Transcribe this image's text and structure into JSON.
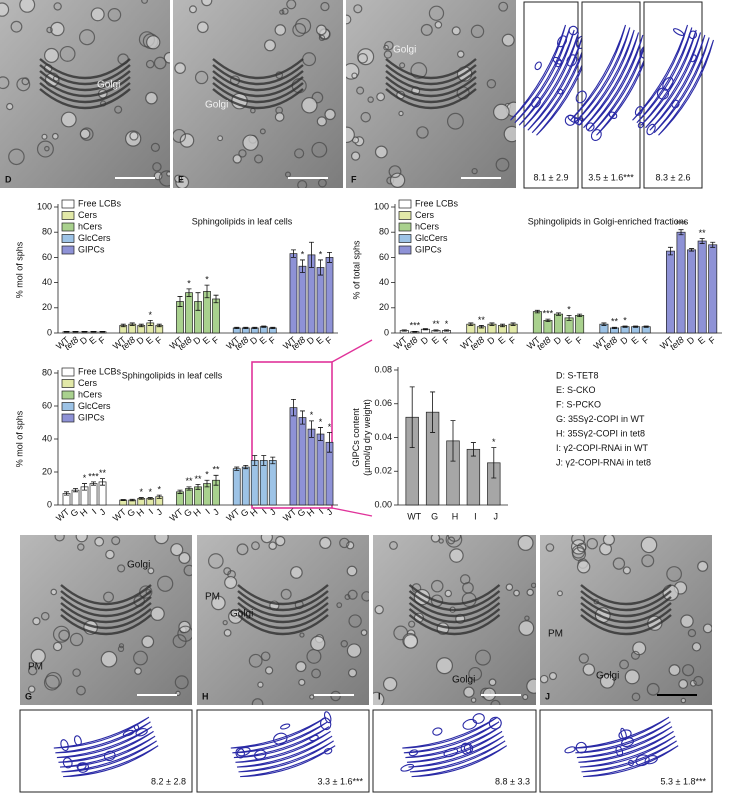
{
  "chart_data": [
    {
      "type": "bar",
      "title": "Sphingolipids in leaf cells",
      "y_label": "% mol of sphs",
      "ylim": [
        0,
        100
      ],
      "yticks": [
        0,
        20,
        40,
        60,
        80,
        100
      ],
      "series": [
        {
          "name": "Free LCBs",
          "color": "#ffffff",
          "categories": [
            "WT",
            "tet8",
            "D",
            "E",
            "F"
          ],
          "values": [
            1,
            1,
            1,
            1,
            1
          ],
          "errors": [
            0.3,
            0.3,
            0.3,
            0.3,
            0.3
          ],
          "significance": [
            null,
            null,
            null,
            null,
            null
          ]
        },
        {
          "name": "Cers",
          "color": "#e2e9a8",
          "categories": [
            "WT",
            "tet8",
            "D",
            "E",
            "F"
          ],
          "values": [
            6,
            7,
            6,
            8,
            6
          ],
          "errors": [
            1,
            1,
            1,
            2,
            1
          ],
          "significance": [
            null,
            null,
            null,
            "*",
            null
          ]
        },
        {
          "name": "hCers",
          "color": "#a9d18e",
          "categories": [
            "WT",
            "tet8",
            "D",
            "E",
            "F"
          ],
          "values": [
            25,
            32,
            25,
            33,
            27
          ],
          "errors": [
            4,
            3,
            7,
            5,
            3
          ],
          "significance": [
            null,
            "*",
            null,
            "*",
            null
          ]
        },
        {
          "name": "GlcCers",
          "color": "#9dc3e6",
          "categories": [
            "WT",
            "tet8",
            "D",
            "E",
            "F"
          ],
          "values": [
            4,
            4,
            4,
            5,
            4
          ],
          "errors": [
            0.5,
            0.5,
            0.5,
            0.5,
            0.5
          ],
          "significance": [
            null,
            null,
            null,
            null,
            null
          ]
        },
        {
          "name": "GIPCs",
          "color": "#8e92d6",
          "categories": [
            "WT",
            "tet8",
            "D",
            "E",
            "F"
          ],
          "values": [
            63,
            53,
            62,
            52,
            60
          ],
          "errors": [
            3,
            5,
            10,
            6,
            4
          ],
          "significance": [
            null,
            "*",
            null,
            "*",
            null
          ]
        }
      ]
    },
    {
      "type": "bar",
      "title": "Sphingolipids in Golgi-enriched fractions",
      "y_label": "% of total sphs",
      "ylim": [
        0,
        100
      ],
      "yticks": [
        0,
        20,
        40,
        60,
        80,
        100
      ],
      "series": [
        {
          "name": "Free LCBs",
          "color": "#ffffff",
          "categories": [
            "WT",
            "tet8",
            "D",
            "E",
            "F"
          ],
          "values": [
            2,
            1,
            3,
            2,
            2
          ],
          "errors": [
            0.5,
            0.3,
            0.5,
            0.5,
            0.5
          ],
          "significance": [
            null,
            "***",
            null,
            "**",
            "*"
          ]
        },
        {
          "name": "Cers",
          "color": "#e2e9a8",
          "categories": [
            "WT",
            "tet8",
            "D",
            "E",
            "F"
          ],
          "values": [
            7,
            5,
            7,
            6,
            7
          ],
          "errors": [
            1,
            1,
            1,
            1,
            1
          ],
          "significance": [
            null,
            "**",
            null,
            null,
            null
          ]
        },
        {
          "name": "hCers",
          "color": "#a9d18e",
          "categories": [
            "WT",
            "tet8",
            "D",
            "E",
            "F"
          ],
          "values": [
            17,
            10,
            15,
            12,
            14
          ],
          "errors": [
            1,
            1,
            1,
            2,
            1
          ],
          "significance": [
            null,
            "***",
            null,
            "*",
            null
          ]
        },
        {
          "name": "GlcCers",
          "color": "#9dc3e6",
          "categories": [
            "WT",
            "tet8",
            "D",
            "E",
            "F"
          ],
          "values": [
            7,
            4,
            5,
            5,
            5
          ],
          "errors": [
            1,
            0.5,
            0.5,
            0.5,
            0.5
          ],
          "significance": [
            null,
            "**",
            "*",
            null,
            null
          ]
        },
        {
          "name": "GIPCs",
          "color": "#8e92d6",
          "categories": [
            "WT",
            "tet8",
            "D",
            "E",
            "F"
          ],
          "values": [
            65,
            80,
            66,
            73,
            70
          ],
          "errors": [
            3,
            2,
            1,
            2,
            2
          ],
          "significance": [
            null,
            "***",
            null,
            "**",
            null
          ]
        }
      ]
    },
    {
      "type": "bar",
      "title": "Sphingolipids in leaf cells",
      "y_label": "% mol of sphs",
      "ylim": [
        0,
        80
      ],
      "yticks": [
        0,
        20,
        40,
        60,
        80
      ],
      "series": [
        {
          "name": "Free LCBs",
          "color": "#ffffff",
          "categories": [
            "WT",
            "G",
            "H",
            "I",
            "J"
          ],
          "values": [
            7,
            9,
            11,
            13,
            14
          ],
          "errors": [
            1,
            1,
            2,
            1,
            2
          ],
          "significance": [
            null,
            null,
            "*",
            "***",
            "**"
          ]
        },
        {
          "name": "Cers",
          "color": "#e2e9a8",
          "categories": [
            "WT",
            "G",
            "H",
            "I",
            "J"
          ],
          "values": [
            3,
            3,
            4,
            4,
            5
          ],
          "errors": [
            0.3,
            0.5,
            0.5,
            0.5,
            1
          ],
          "significance": [
            null,
            null,
            "*",
            "*",
            "*"
          ]
        },
        {
          "name": "hCers",
          "color": "#a9d18e",
          "categories": [
            "WT",
            "G",
            "H",
            "I",
            "J"
          ],
          "values": [
            8,
            10,
            11,
            13,
            15
          ],
          "errors": [
            1,
            1,
            1.5,
            2,
            3
          ],
          "significance": [
            null,
            "**",
            "**",
            "*",
            "**"
          ]
        },
        {
          "name": "GlcCers",
          "color": "#9dc3e6",
          "categories": [
            "WT",
            "G",
            "H",
            "I",
            "J"
          ],
          "values": [
            22,
            23,
            27,
            27,
            27
          ],
          "errors": [
            1,
            1,
            3,
            3,
            2
          ],
          "significance": [
            null,
            null,
            null,
            null,
            null
          ]
        },
        {
          "name": "GIPCs",
          "color": "#8e92d6",
          "categories": [
            "WT",
            "G",
            "H",
            "I",
            "J"
          ],
          "values": [
            59,
            53,
            46,
            43,
            38
          ],
          "errors": [
            5,
            4,
            5,
            4,
            6
          ],
          "significance": [
            null,
            null,
            "*",
            "*",
            "*"
          ]
        }
      ]
    },
    {
      "type": "bar",
      "y_label": [
        "GIPCs content",
        "(µmol/g dry weight)"
      ],
      "color": "#a6a6a6",
      "ylim": [
        0,
        0.08
      ],
      "yticks": [
        {
          "value": 0,
          "label": "0.00"
        },
        {
          "value": 0.02,
          "label": "0.02"
        },
        {
          "value": 0.04,
          "label": "0.04"
        },
        {
          "value": 0.06,
          "label": "0.06"
        },
        {
          "value": 0.08,
          "label": "0.08"
        }
      ],
      "categories": [
        "WT",
        "G",
        "H",
        "I",
        "J"
      ],
      "values": [
        0.052,
        0.055,
        0.038,
        0.033,
        0.025
      ],
      "errors": [
        0.018,
        0.012,
        0.012,
        0.004,
        0.009
      ],
      "significance": [
        null,
        null,
        null,
        null,
        "*"
      ]
    }
  ],
  "key": [
    "D: S-TET8",
    "E: S-CKO",
    "F: S-PCKO",
    "G: 35Sγ2-COPI in WT",
    "H: 35Sγ2-COPI in tet8",
    "I: γ2-COPI-RNAi in WT",
    "J: γ2-COPI-RNAi in tet8"
  ],
  "micrographs": [
    {
      "panel": "D",
      "labels": [
        "Golgi"
      ]
    },
    {
      "panel": "E",
      "labels": [
        "Golgi"
      ]
    },
    {
      "panel": "F",
      "labels": [
        "Golgi"
      ]
    },
    {
      "panel": "G",
      "labels": [
        "Golgi",
        "PM"
      ]
    },
    {
      "panel": "H",
      "labels": [
        "PM",
        "Golgi"
      ]
    },
    {
      "panel": "I",
      "labels": [
        "Golgi"
      ]
    },
    {
      "panel": "J",
      "labels": [
        "PM",
        "Golgi"
      ]
    }
  ],
  "tracings": [
    "8.1 ± 2.9",
    "3.5 ± 1.6***",
    "8.3 ± 2.6",
    "8.2 ± 2.8",
    "3.3 ± 1.6***",
    "8.8 ± 3.3",
    "5.3 ± 1.8***"
  ]
}
